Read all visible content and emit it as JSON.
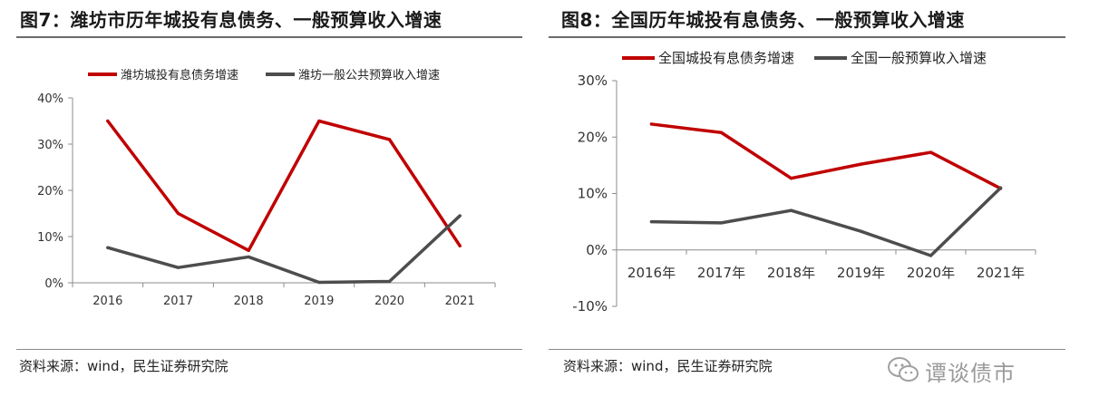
{
  "charts": [
    {
      "title": "图7：潍坊市历年城投有息债务、一般预算收入增速",
      "source": "资料来源：wind，民生证券研究院"
    },
    {
      "title": "图8：全国历年城投有息债务、一般预算收入增速",
      "source": "资料来源：wind，民生证券研究院"
    }
  ],
  "watermark": {
    "text": "谭谈债市",
    "icon": "wechat-icon"
  },
  "chart_data": [
    {
      "type": "line",
      "categories": [
        "2016",
        "2017",
        "2018",
        "2019",
        "2020",
        "2021"
      ],
      "series": [
        {
          "name": "潍坊城投有息债务增速",
          "color": "#c00000",
          "values": [
            35,
            15,
            7,
            35,
            31,
            8
          ]
        },
        {
          "name": "潍坊一般公共预算收入增速",
          "color": "#4d4d4d",
          "values": [
            7.6,
            3.3,
            5.6,
            0.1,
            0.3,
            14.5
          ]
        }
      ],
      "ylim": [
        0,
        40
      ],
      "yticks": [
        "0%",
        "10%",
        "20%",
        "30%",
        "40%"
      ],
      "ytick_values": [
        0,
        10,
        20,
        30,
        40
      ],
      "grid": false,
      "legend": "top-left"
    },
    {
      "type": "line",
      "categories": [
        "2016年",
        "2017年",
        "2018年",
        "2019年",
        "2020年",
        "2021年"
      ],
      "series": [
        {
          "name": "全国城投有息债务增速",
          "color": "#c00000",
          "values": [
            22.3,
            20.8,
            12.7,
            15.2,
            17.3,
            10.9
          ]
        },
        {
          "name": "全国一般预算收入增速",
          "color": "#4d4d4d",
          "values": [
            5.0,
            4.8,
            7.0,
            3.3,
            -1.0,
            11.0
          ]
        }
      ],
      "ylim": [
        -10,
        30
      ],
      "yticks": [
        "-10%",
        "0%",
        "10%",
        "20%",
        "30%"
      ],
      "ytick_values": [
        -10,
        0,
        10,
        20,
        30
      ],
      "grid": false,
      "legend": "top-left"
    }
  ]
}
